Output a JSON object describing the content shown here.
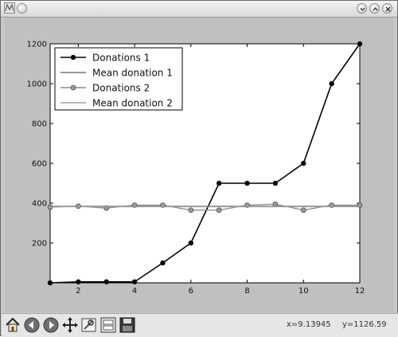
{
  "window": {
    "title_icon": "matplotlib-app-icon",
    "buttons": [
      "minimize-icon",
      "maximize-icon",
      "close-icon"
    ]
  },
  "chart_data": {
    "type": "line",
    "x": [
      1,
      2,
      3,
      4,
      5,
      6,
      7,
      8,
      9,
      10,
      11,
      12
    ],
    "xlim": [
      1,
      12
    ],
    "ylim": [
      0,
      1200
    ],
    "xticks": [
      "2",
      "4",
      "6",
      "8",
      "10",
      "12"
    ],
    "yticks": [
      "200",
      "400",
      "600",
      "800",
      "1000",
      "1200"
    ],
    "grid": false,
    "legend_position": "top-left",
    "series": [
      {
        "name": "Donations 1",
        "values": [
          0,
          5,
          5,
          5,
          100,
          200,
          500,
          500,
          500,
          600,
          1000,
          1200
        ],
        "color": "#000000",
        "marker": "filled-circle"
      },
      {
        "name": "Mean donation 1",
        "values": [
          384.6,
          384.6,
          384.6,
          384.6,
          384.6,
          384.6,
          384.6,
          384.6,
          384.6,
          384.6,
          384.6,
          384.6
        ],
        "color": "#777777",
        "marker": "none"
      },
      {
        "name": "Donations 2",
        "values": [
          380,
          385,
          375,
          390,
          390,
          365,
          365,
          390,
          395,
          365,
          390,
          390
        ],
        "color": "#888888",
        "marker": "gray-circle"
      },
      {
        "name": "Mean donation 2",
        "values": [
          382,
          382,
          382,
          382,
          382,
          382,
          382,
          382,
          382,
          382,
          382,
          382
        ],
        "color": "#a0a0a0",
        "marker": "none"
      }
    ]
  },
  "toolbar": {
    "icons": [
      "home-icon",
      "back-icon",
      "forward-icon",
      "pan-icon",
      "zoom-icon",
      "subplots-icon",
      "save-icon"
    ],
    "coords_x": "x=9.13945",
    "coords_y": "y=1126.59"
  }
}
